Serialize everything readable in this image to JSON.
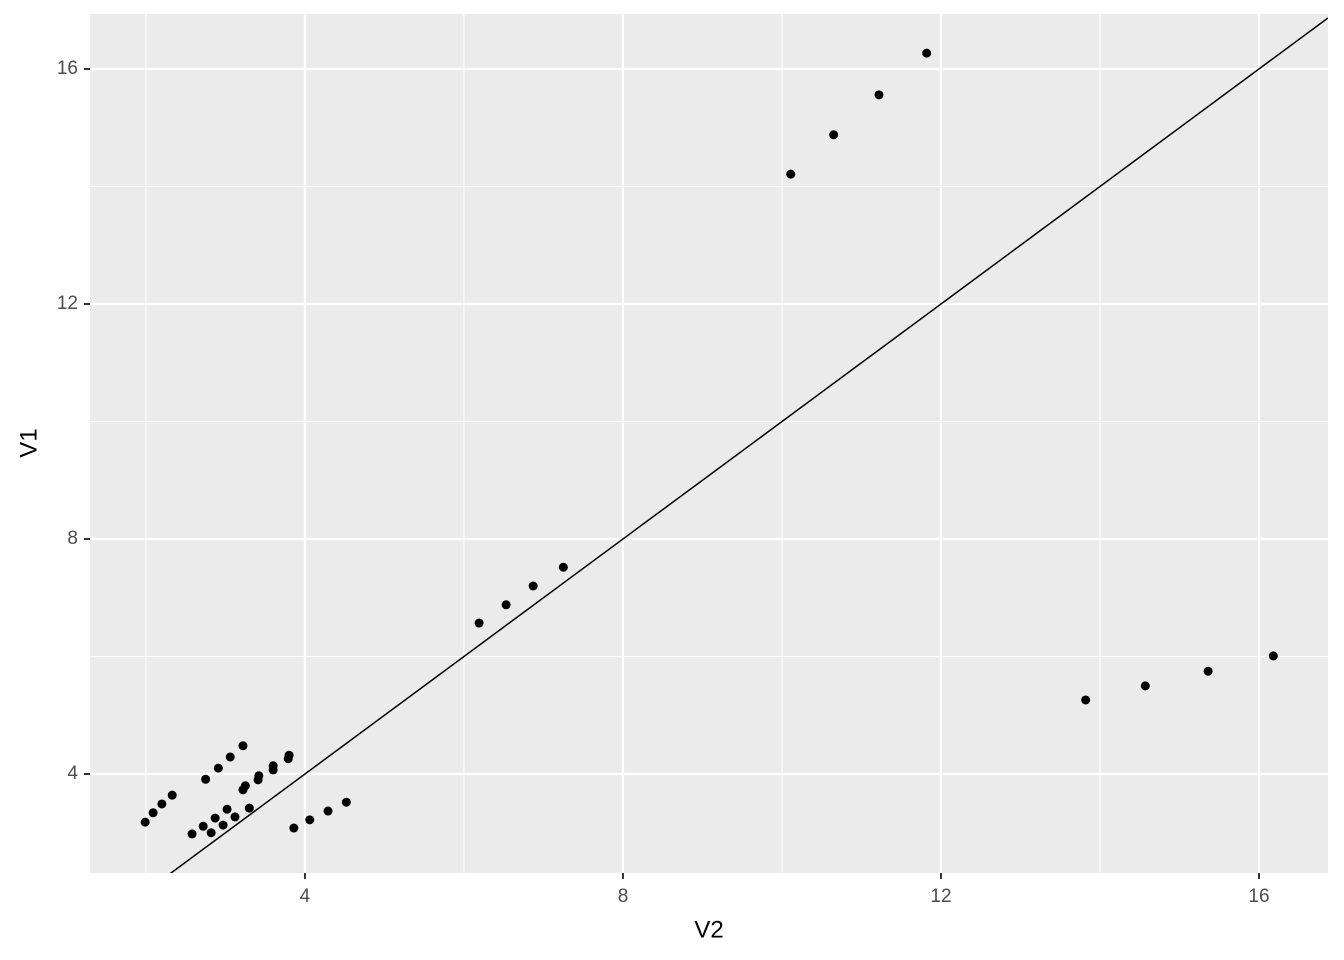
{
  "chart_data": {
    "type": "scatter",
    "x_label": "V2",
    "y_label": "V1",
    "x": [
      1.99,
      2.09,
      2.2,
      2.33,
      2.58,
      2.72,
      2.82,
      2.87,
      2.97,
      3.02,
      3.12,
      3.3,
      2.75,
      2.91,
      3.06,
      3.22,
      3.22,
      3.25,
      3.41,
      3.42,
      3.6,
      3.6,
      3.79,
      3.8,
      3.86,
      4.06,
      4.29,
      4.52,
      6.19,
      6.53,
      6.87,
      7.25,
      10.11,
      10.65,
      11.22,
      11.82,
      13.82,
      14.57,
      15.36,
      16.18
    ],
    "values": [
      3.18,
      3.34,
      3.49,
      3.64,
      2.98,
      3.11,
      3.0,
      3.25,
      3.13,
      3.4,
      3.27,
      3.42,
      3.91,
      4.1,
      4.29,
      4.48,
      3.73,
      3.8,
      3.9,
      3.97,
      4.07,
      4.14,
      4.26,
      4.32,
      3.08,
      3.22,
      3.37,
      3.52,
      6.57,
      6.88,
      7.2,
      7.52,
      14.21,
      14.88,
      15.56,
      16.27,
      5.26,
      5.5,
      5.75,
      6.01
    ],
    "color": "#000000",
    "reference_line": {
      "slope": 1,
      "intercept": 0
    },
    "xlim": [
      1.296,
      16.868
    ],
    "ylim": [
      2.315,
      16.936
    ],
    "xticks": [
      4,
      8,
      12,
      16
    ],
    "yticks": [
      4,
      8,
      12,
      16
    ],
    "grid": true
  }
}
